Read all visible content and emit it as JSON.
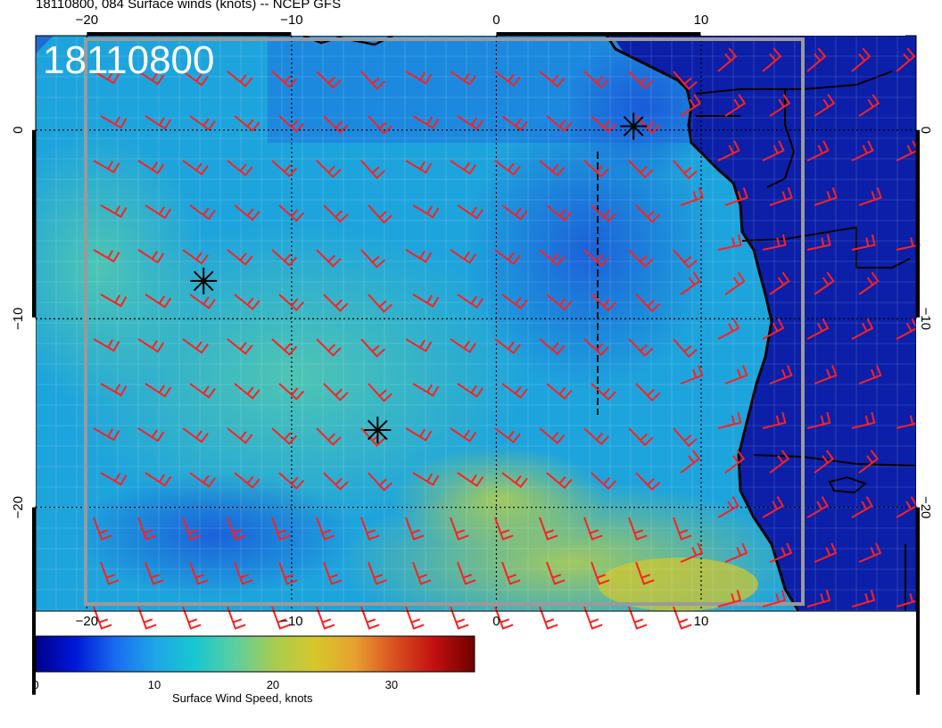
{
  "title": "18110800, 084 Surface winds (knots) -- NCEP GFS",
  "stamp": "18110800",
  "map": {
    "lon_range": [
      -22.5,
      20.5
    ],
    "lat_range": [
      -25.5,
      5.0
    ],
    "x_ticks": [
      "−20",
      "−10",
      "0",
      "10"
    ],
    "x_tick_values": [
      -20,
      -10,
      0,
      10
    ],
    "y_ticks": [
      "0",
      "−10",
      "−20"
    ],
    "y_tick_values": [
      0,
      -10,
      -20
    ],
    "grid": true,
    "markers": [
      {
        "name": "asterisk-marker",
        "lon": -14.3,
        "lat": -8.0
      },
      {
        "name": "asterisk-marker",
        "lon": -5.8,
        "lat": -15.9
      },
      {
        "name": "asterisk-marker",
        "lon": 6.7,
        "lat": 0.2
      }
    ],
    "colors": {
      "land": "#0b1fa8",
      "ocean_mid": "#1ea0d8",
      "barb": "#ff2020",
      "grid": "#000000"
    }
  },
  "colorbar": {
    "ticks": [
      "0",
      "10",
      "20",
      "30"
    ],
    "tick_values": [
      0,
      10,
      20,
      30
    ],
    "max": 37,
    "label": "Surface Wind Speed, knots",
    "stops": [
      "#00008b",
      "#0018d8",
      "#1a6cf0",
      "#1ea6e6",
      "#18c8d0",
      "#5ccfa0",
      "#a9cc50",
      "#d6c82a",
      "#e8a030",
      "#d85020",
      "#c01010",
      "#700000"
    ]
  }
}
